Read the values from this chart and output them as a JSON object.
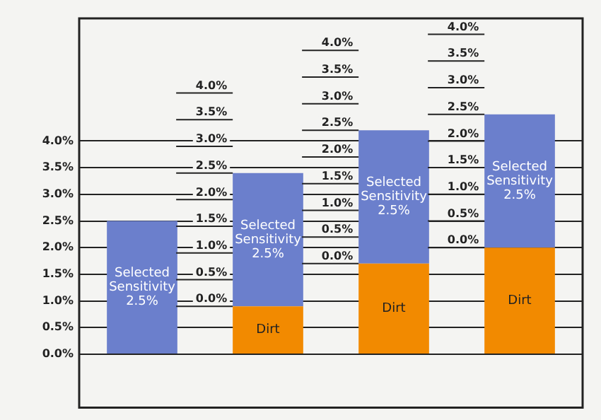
{
  "chart_data": {
    "type": "bar",
    "stacked": true,
    "categories": [
      null,
      null,
      null,
      null
    ],
    "series": [
      {
        "name": "Dirt",
        "color": "#f28a00",
        "values": [
          null,
          0.9,
          1.7,
          2.0
        ]
      },
      {
        "name": "Selected Sensitivity 2.5%",
        "color": "#6b7fcc",
        "values": [
          2.5,
          2.5,
          2.5,
          2.5
        ]
      }
    ],
    "ylim": [
      -1,
      6.3
    ],
    "yticks": [
      {
        "value": 0,
        "label": "0.0%"
      },
      {
        "value": 0.5,
        "label": "0.5%"
      },
      {
        "value": 1,
        "label": "1.0%"
      },
      {
        "value": 1.5,
        "label": "1.5%"
      },
      {
        "value": 2,
        "label": "2.0%"
      },
      {
        "value": 2.5,
        "label": "2.5%"
      },
      {
        "value": 3,
        "label": "3.0%"
      },
      {
        "value": 3.5,
        "label": "3.5%"
      },
      {
        "value": 4,
        "label": "4.0%"
      }
    ],
    "grid": "y",
    "legend": false
  }
}
